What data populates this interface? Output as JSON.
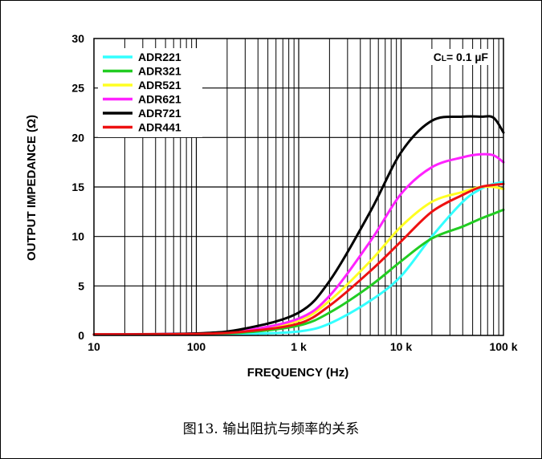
{
  "chart_data": {
    "type": "line",
    "xlabel": "FREQUENCY (Hz)",
    "ylabel": "OUTPUT IMPEDANCE (Ω)",
    "xscale": "log",
    "xlim": [
      10,
      100000
    ],
    "ylim": [
      0,
      30
    ],
    "grid": true,
    "legend_placement": "top-left",
    "x_ticks": [
      {
        "value": 10,
        "label": "10"
      },
      {
        "value": 100,
        "label": "100"
      },
      {
        "value": 1000,
        "label": "1 k"
      },
      {
        "value": 10000,
        "label": "10 k"
      },
      {
        "value": 100000,
        "label": "100 k"
      }
    ],
    "y_ticks": [
      {
        "value": 0,
        "label": "0"
      },
      {
        "value": 5,
        "label": "5"
      },
      {
        "value": 10,
        "label": "10"
      },
      {
        "value": 15,
        "label": "15"
      },
      {
        "value": 20,
        "label": "20"
      },
      {
        "value": 25,
        "label": "25"
      },
      {
        "value": 30,
        "label": "30"
      }
    ],
    "annotation": {
      "prefix": "C",
      "sub": "L",
      "suffix": "= 0.1 µF"
    },
    "series": [
      {
        "name": "ADR221",
        "color": "#33ffff",
        "x": [
          10,
          100,
          300,
          1000,
          2000,
          5000,
          10000,
          20000,
          40000,
          60000,
          80000,
          100000
        ],
        "y": [
          0.1,
          0.1,
          0.15,
          0.4,
          1.2,
          3.5,
          6.0,
          10.0,
          13.5,
          14.8,
          15.3,
          15.5
        ]
      },
      {
        "name": "ADR321",
        "color": "#22cc22",
        "x": [
          10,
          100,
          300,
          1000,
          2000,
          5000,
          10000,
          20000,
          40000,
          60000,
          80000,
          100000
        ],
        "y": [
          0.1,
          0.15,
          0.3,
          1.0,
          2.3,
          5.0,
          7.5,
          9.8,
          11.0,
          11.8,
          12.3,
          12.7
        ]
      },
      {
        "name": "ADR521",
        "color": "#ffff22",
        "x": [
          10,
          100,
          300,
          1000,
          2000,
          5000,
          10000,
          20000,
          40000,
          60000,
          80000,
          100000
        ],
        "y": [
          0.1,
          0.2,
          0.5,
          1.5,
          3.5,
          7.5,
          11.0,
          13.5,
          14.5,
          15.0,
          15.0,
          14.8
        ]
      },
      {
        "name": "ADR621",
        "color": "#ff22ff",
        "x": [
          10,
          100,
          300,
          1000,
          2000,
          5000,
          10000,
          20000,
          40000,
          60000,
          80000,
          100000
        ],
        "y": [
          0.1,
          0.2,
          0.5,
          1.7,
          4.0,
          9.5,
          14.3,
          17.0,
          18.0,
          18.3,
          18.2,
          17.5
        ]
      },
      {
        "name": "ADR721",
        "color": "#000000",
        "x": [
          10,
          100,
          300,
          1000,
          2000,
          5000,
          10000,
          20000,
          40000,
          60000,
          80000,
          100000
        ],
        "y": [
          0.1,
          0.2,
          0.7,
          2.3,
          5.5,
          12.5,
          18.5,
          21.7,
          22.1,
          22.1,
          22.0,
          20.5
        ]
      },
      {
        "name": "ADR441",
        "color": "#ee1111",
        "x": [
          10,
          100,
          300,
          1000,
          2000,
          5000,
          10000,
          20000,
          40000,
          60000,
          80000,
          100000
        ],
        "y": [
          0.1,
          0.15,
          0.4,
          1.2,
          3.0,
          6.5,
          9.5,
          12.5,
          14.2,
          15.0,
          15.2,
          15.3
        ]
      }
    ]
  },
  "caption": "图13. 输出阻抗与频率的关系"
}
